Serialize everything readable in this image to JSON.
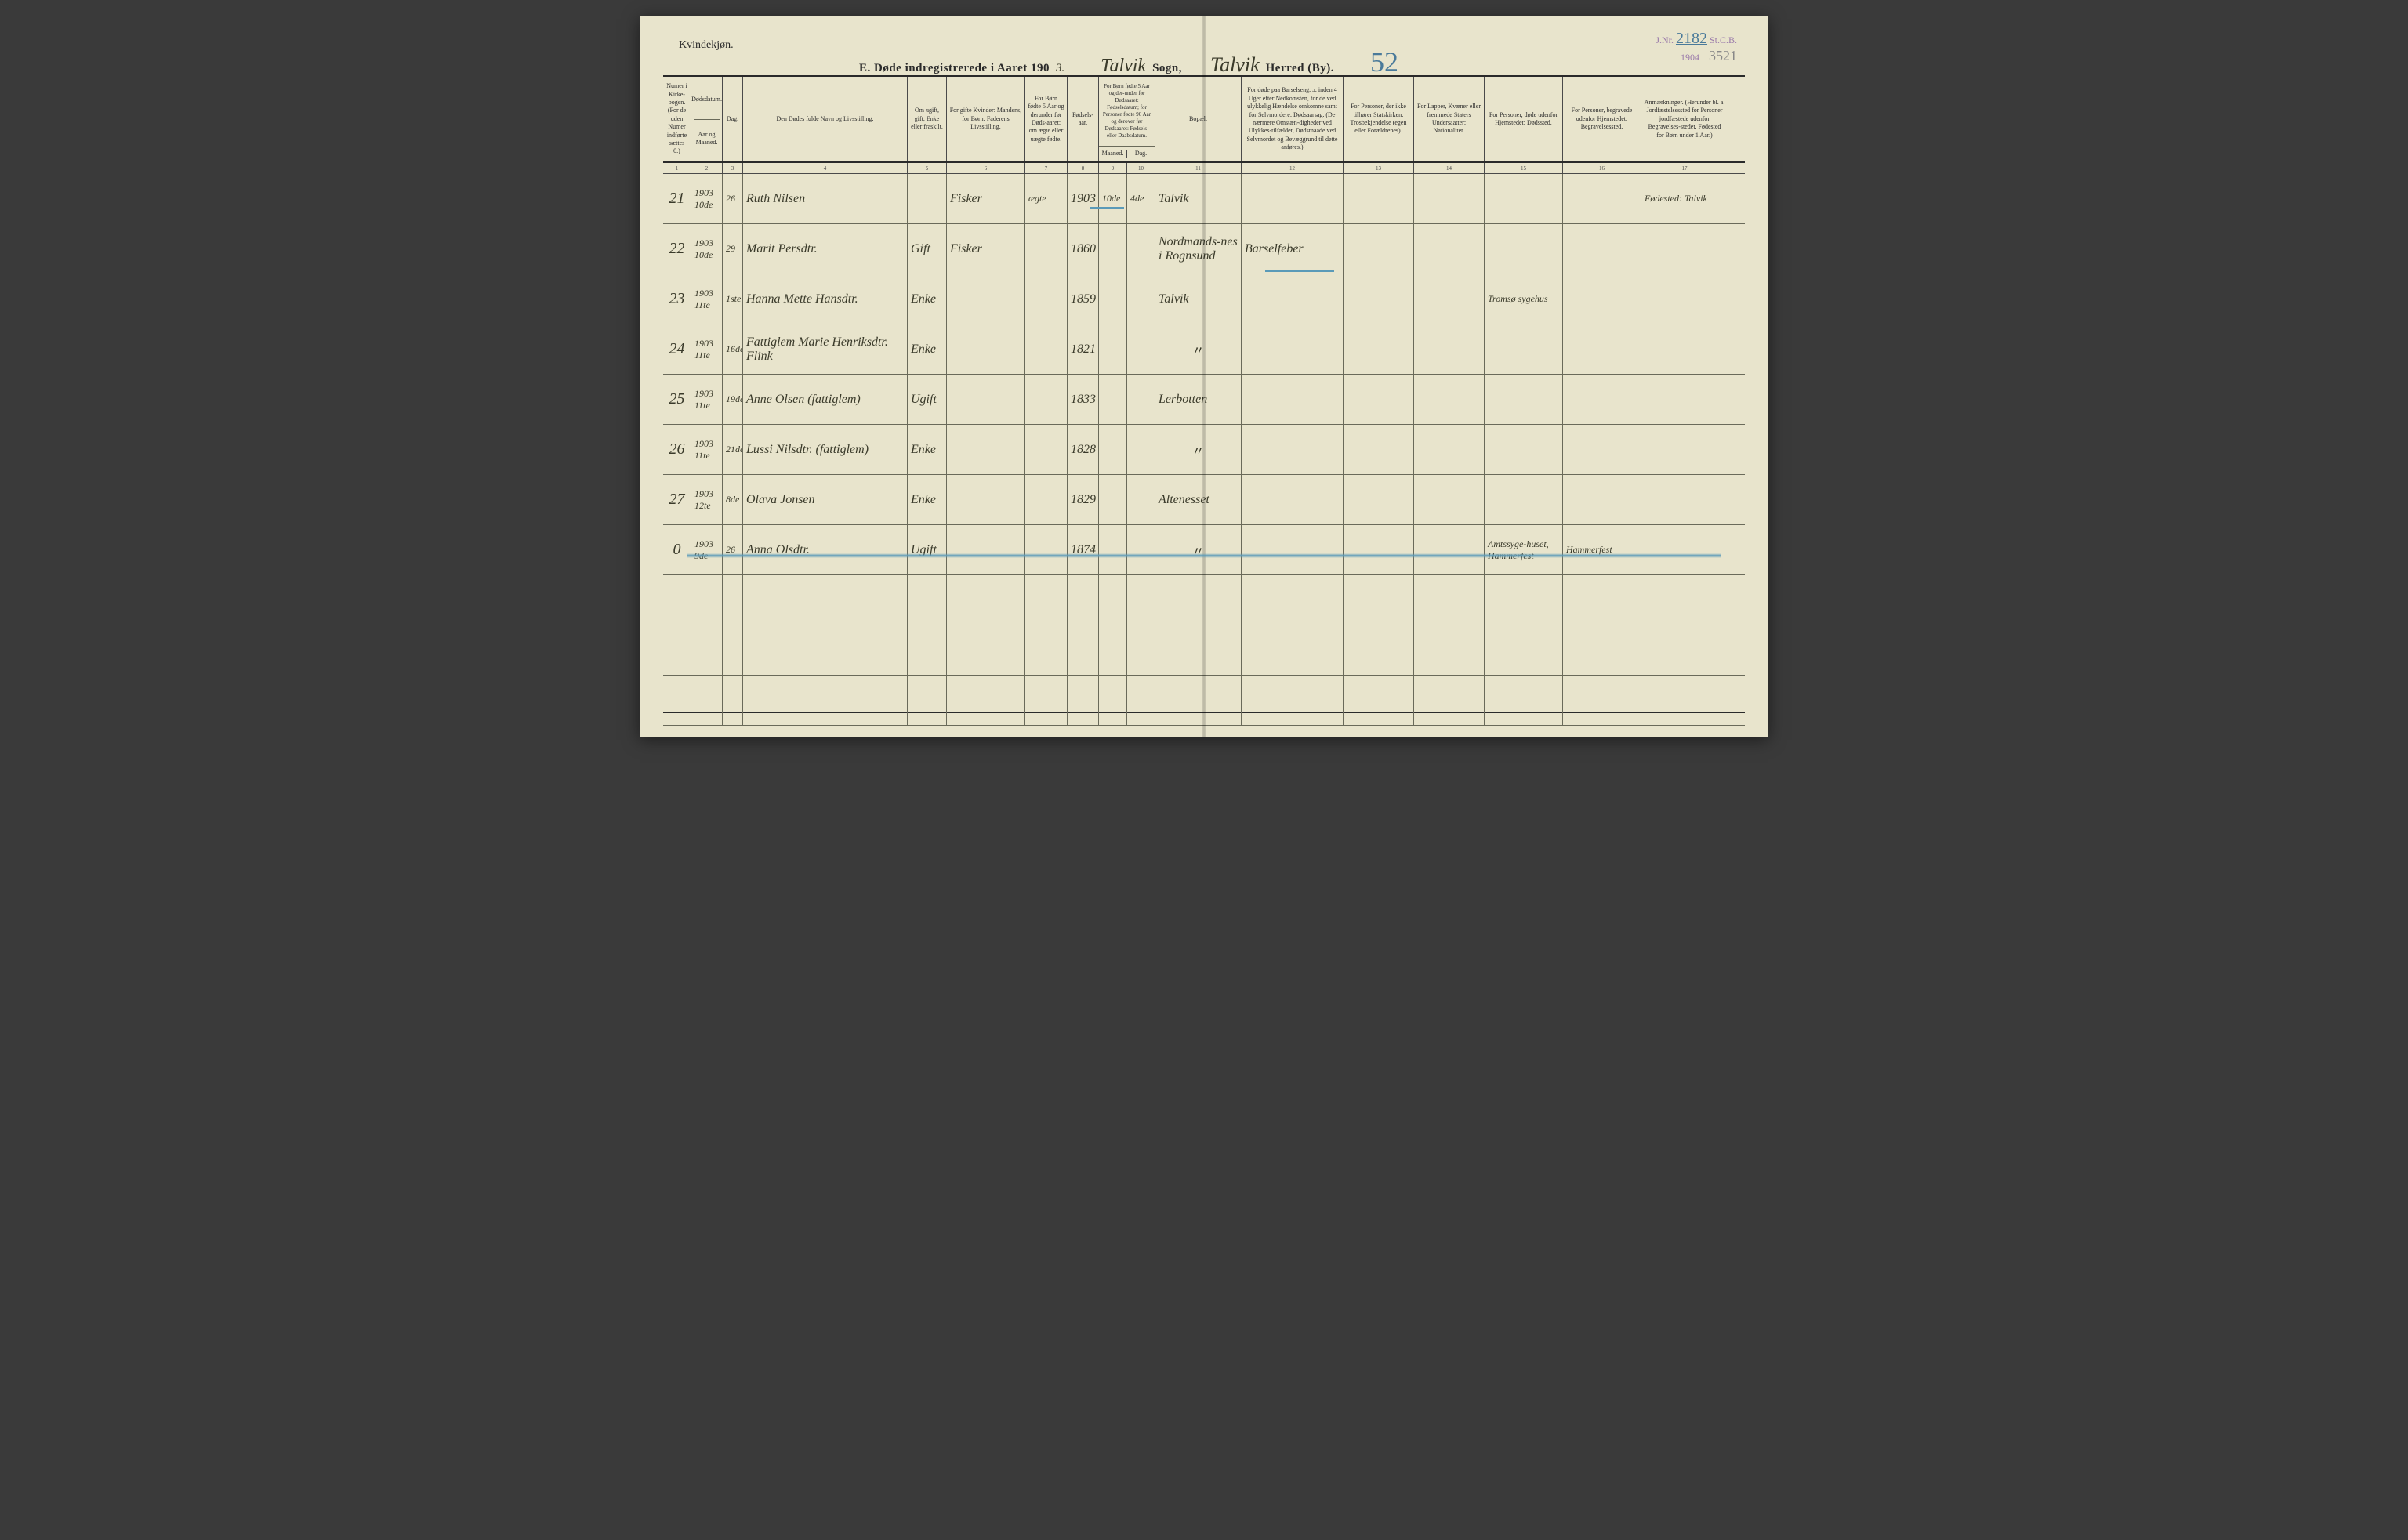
{
  "page": {
    "background_color": "#e8e4cc",
    "line_color": "#4a4a4a",
    "ink_color": "#3a3a2a",
    "blue_pencil": "#5a9ab8",
    "purple_stamp": "#9a7aaa"
  },
  "header": {
    "gender_label": "Kvindekjøn.",
    "title_prefix": "E.  Døde indregistrerede i Aaret 190",
    "year_suffix_hw": "3.",
    "sogn_hw": "Talvik",
    "sogn_label": "Sogn,",
    "herred_hw": "Talvik",
    "herred_label": "Herred (By).",
    "big_number_hw": "52",
    "stamp_jnr_label": "J.Nr.",
    "stamp_jnr_num": "2182",
    "stamp_stcb": "St.C.B.",
    "stamp_year": "1904",
    "pencil_number": "3521"
  },
  "columns": {
    "c1": "Numer i Kirke-bogen. (For de uden Numer indførte sættes 0.)",
    "c2a": "Dødsdatum.",
    "c2b": "Aar og Maaned.",
    "c3": "Dag.",
    "c4": "Den Dødes fulde Navn og Livsstilling.",
    "c5": "Om ugift, gift, Enke eller fraskilt.",
    "c6": "For gifte Kvinder: Mandens, for Børn: Faderens Livsstilling.",
    "c7": "For Børn fødte 5 Aar og derunder før Døds-aaret: om ægte eller uægte fødte.",
    "c8": "Fødsels-aar.",
    "c9_10": "For Børn fødte 5 Aar og der-under før Dødsaaret: Fødselsdatum; for Personer fødte 90 Aar og derover før Dødsaaret: Fødsels- eller Daabsdatum.",
    "c9": "Maaned.",
    "c10": "Dag.",
    "c11": "Bopæl.",
    "c12": "For døde paa Barselseng, ɔ: inden 4 Uger efter Nedkomsten, for de ved ulykkelig Hændelse omkomne samt for Selvmordere: Dødsaarsag. (De nærmere Omstæn-digheder ved Ulykkes-tilfældet, Dødsmaade ved Selvmordet og Bevæggrund til dette anføres.)",
    "c13": "For Personer, der ikke tilhører Statskirken: Trosbekjendelse (egen eller Forældrenes).",
    "c14": "For Lapper, Kvæner eller fremmede Staters Undersaatter: Nationalitet.",
    "c15": "For Personer, døde udenfor Hjemstedet: Dødssted.",
    "c16": "For Personer, begravede udenfor Hjemstedet: Begravelsessted.",
    "c17": "Anmærkninger. (Herunder bl. a. Jordfæstelsessted for Personer jordfæstede udenfor Begravelses-stedet, Fødested for Børn under 1 Aar.)",
    "nums": [
      "1",
      "2",
      "3",
      "4",
      "5",
      "6",
      "7",
      "8",
      "9",
      "10",
      "11",
      "12",
      "13",
      "14",
      "15",
      "16",
      "17"
    ]
  },
  "rows": [
    {
      "num": "21",
      "ym": "1903 10de",
      "day": "26",
      "name": "Ruth Nilsen",
      "status": "",
      "occupation": "Fisker",
      "legit": "ægte",
      "birthyear": "1903",
      "bm": "10de",
      "bd": "4de",
      "residence": "Talvik",
      "cause": "",
      "faith": "",
      "nat": "",
      "deathplace": "",
      "burialplace": "",
      "remarks": "Fødested: Talvik"
    },
    {
      "num": "22",
      "ym": "1903 10de",
      "day": "29",
      "name": "Marit Persdtr.",
      "status": "Gift",
      "occupation": "Fisker",
      "legit": "",
      "birthyear": "1860",
      "bm": "",
      "bd": "",
      "residence": "Nordmands-nes i Rognsund",
      "cause": "Barselfeber",
      "faith": "",
      "nat": "",
      "deathplace": "",
      "burialplace": "",
      "remarks": ""
    },
    {
      "num": "23",
      "ym": "1903 11te",
      "day": "1ste",
      "name": "Hanna Mette Hansdtr.",
      "status": "Enke",
      "occupation": "",
      "legit": "",
      "birthyear": "1859",
      "bm": "",
      "bd": "",
      "residence": "Talvik",
      "cause": "",
      "faith": "",
      "nat": "",
      "deathplace": "Tromsø sygehus",
      "burialplace": "",
      "remarks": ""
    },
    {
      "num": "24",
      "ym": "1903 11te",
      "day": "16de",
      "name": "Fattiglem Marie Henriksdtr. Flink",
      "status": "Enke",
      "occupation": "",
      "legit": "",
      "birthyear": "1821",
      "bm": "",
      "bd": "",
      "residence": "〃",
      "cause": "",
      "faith": "",
      "nat": "",
      "deathplace": "",
      "burialplace": "",
      "remarks": ""
    },
    {
      "num": "25",
      "ym": "1903 11te",
      "day": "19de",
      "name": "Anne Olsen (fattiglem)",
      "status": "Ugift",
      "occupation": "",
      "legit": "",
      "birthyear": "1833",
      "bm": "",
      "bd": "",
      "residence": "Lerbotten",
      "cause": "",
      "faith": "",
      "nat": "",
      "deathplace": "",
      "burialplace": "",
      "remarks": ""
    },
    {
      "num": "26",
      "ym": "1903 11te",
      "day": "21de",
      "name": "Lussi Nilsdtr. (fattiglem)",
      "status": "Enke",
      "occupation": "",
      "legit": "",
      "birthyear": "1828",
      "bm": "",
      "bd": "",
      "residence": "〃",
      "cause": "",
      "faith": "",
      "nat": "",
      "deathplace": "",
      "burialplace": "",
      "remarks": ""
    },
    {
      "num": "27",
      "ym": "1903 12te",
      "day": "8de",
      "name": "Olava Jonsen",
      "status": "Enke",
      "occupation": "",
      "legit": "",
      "birthyear": "1829",
      "bm": "",
      "bd": "",
      "residence": "Altenesset",
      "cause": "",
      "faith": "",
      "nat": "",
      "deathplace": "",
      "burialplace": "",
      "remarks": ""
    },
    {
      "num": "0",
      "ym": "1903 9de",
      "day": "26",
      "name": "Anna Olsdtr.",
      "status": "Ugift",
      "occupation": "",
      "legit": "",
      "birthyear": "1874",
      "bm": "",
      "bd": "",
      "residence": "〃",
      "cause": "",
      "faith": "",
      "nat": "",
      "deathplace": "Amtssyge-huset, Hammerfest",
      "burialplace": "Hammerfest",
      "remarks": "",
      "struck": true
    }
  ]
}
